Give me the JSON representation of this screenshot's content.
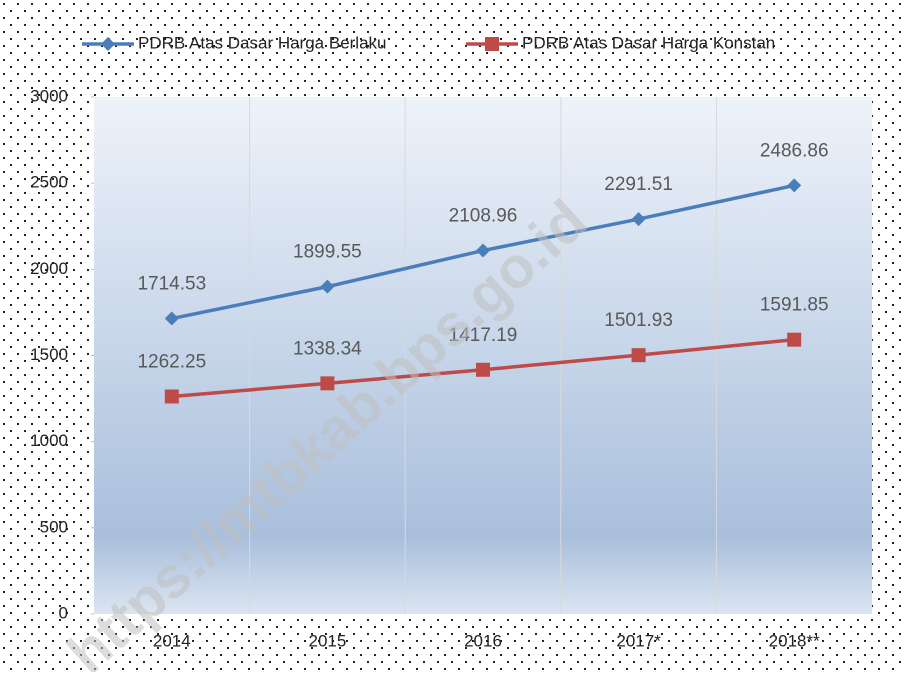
{
  "chart_data": {
    "type": "line",
    "categories": [
      "2014",
      "2015",
      "2016",
      "2017*",
      "2018**"
    ],
    "series": [
      {
        "name": "PDRB Atas Dasar Harga Berlaku",
        "color": "#4a7ebb",
        "marker": "diamond",
        "values": [
          1714.53,
          1899.55,
          2108.96,
          2291.51,
          2486.86
        ]
      },
      {
        "name": "PDRB Atas Dasar Harga Konstan",
        "color": "#be4b48",
        "marker": "square",
        "values": [
          1262.25,
          1338.34,
          1417.19,
          1501.93,
          1591.85
        ]
      }
    ],
    "ylim": [
      0,
      3000
    ],
    "yticks": [
      0,
      500,
      1000,
      1500,
      2000,
      2500,
      3000
    ],
    "legend": "top",
    "watermark": "https://mtbkab.bps.go.id"
  }
}
